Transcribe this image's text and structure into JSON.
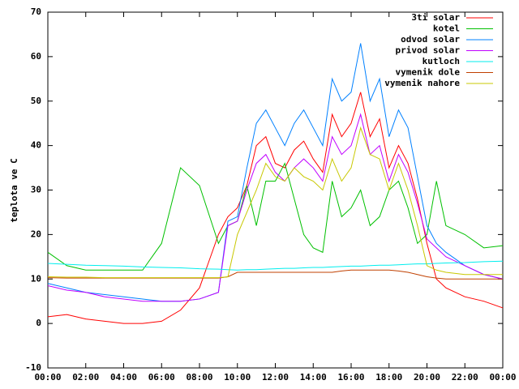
{
  "chart_data": {
    "type": "line",
    "ylabel": "teplota ve C",
    "x": [
      0,
      1,
      2,
      3,
      4,
      5,
      6,
      7,
      8,
      9,
      9.5,
      10,
      10.5,
      11,
      11.5,
      12,
      12.5,
      13,
      13.5,
      14,
      14.5,
      15,
      15.5,
      16,
      16.5,
      17,
      17.5,
      18,
      18.5,
      19,
      19.5,
      20,
      20.5,
      21,
      22,
      23,
      24
    ],
    "xlim": [
      0,
      24
    ],
    "xticks": [
      {
        "value": 0,
        "label": "00:00"
      },
      {
        "value": 2,
        "label": "02:00"
      },
      {
        "value": 4,
        "label": "04:00"
      },
      {
        "value": 6,
        "label": "06:00"
      },
      {
        "value": 8,
        "label": "08:00"
      },
      {
        "value": 10,
        "label": "10:00"
      },
      {
        "value": 12,
        "label": "12:00"
      },
      {
        "value": 14,
        "label": "14:00"
      },
      {
        "value": 16,
        "label": "16:00"
      },
      {
        "value": 18,
        "label": "18:00"
      },
      {
        "value": 20,
        "label": "20:00"
      },
      {
        "value": 22,
        "label": "22:00"
      },
      {
        "value": 24,
        "label": "00:00"
      }
    ],
    "ylim": [
      -10,
      70
    ],
    "yticks": [
      -10,
      0,
      10,
      20,
      30,
      40,
      50,
      60,
      70
    ],
    "legend": "top-right",
    "series": [
      {
        "name": "3ti solar",
        "color": "#ff0000",
        "values": [
          1.5,
          2,
          1,
          0.5,
          0,
          0,
          0.5,
          3,
          8,
          20,
          24,
          26,
          31,
          40,
          42,
          36,
          35,
          39,
          41,
          37,
          34,
          47,
          42,
          45,
          52,
          42,
          46,
          35,
          40,
          36,
          28,
          18,
          10,
          8,
          6,
          5,
          3.5
        ]
      },
      {
        "name": "kotel",
        "color": "#00c000",
        "values": [
          16,
          13,
          12,
          12,
          12,
          12,
          18,
          35,
          31,
          18,
          22,
          23,
          31,
          22,
          32,
          32,
          36,
          28,
          20,
          17,
          16,
          32,
          24,
          26,
          30,
          22,
          24,
          30,
          32,
          26,
          18,
          20,
          32,
          22,
          20,
          17,
          17.5
        ]
      },
      {
        "name": "odvod solar",
        "color": "#0080ff",
        "values": [
          9,
          8,
          7,
          6.5,
          6,
          5.5,
          5,
          5,
          5.5,
          7,
          23,
          24,
          35,
          45,
          48,
          44,
          40,
          45,
          48,
          44,
          40,
          55,
          50,
          52,
          63,
          50,
          55,
          42,
          48,
          44,
          33,
          22,
          18,
          16,
          13,
          11,
          10
        ]
      },
      {
        "name": "privod solar",
        "color": "#c000ff",
        "values": [
          8.5,
          7.5,
          7,
          6,
          5.5,
          5,
          5,
          5,
          5.5,
          7,
          22,
          23,
          30,
          36,
          38,
          34,
          32,
          35,
          37,
          35,
          32,
          42,
          38,
          40,
          47,
          38,
          40,
          32,
          38,
          34,
          27,
          19,
          17,
          15,
          13,
          11,
          10
        ]
      },
      {
        "name": "kutloch",
        "color": "#00eeee",
        "values": [
          13.5,
          13.3,
          13.1,
          13,
          12.9,
          12.7,
          12.6,
          12.5,
          12.3,
          12.2,
          12.1,
          12,
          12.1,
          12.1,
          12.2,
          12.3,
          12.4,
          12.4,
          12.5,
          12.6,
          12.6,
          12.7,
          12.8,
          12.9,
          12.9,
          13,
          13.1,
          13.1,
          13.2,
          13.3,
          13.4,
          13.4,
          13.5,
          13.6,
          13.7,
          13.9,
          14
        ]
      },
      {
        "name": "vymenik dole",
        "color": "#c04000",
        "values": [
          10.3,
          10.2,
          10.2,
          10.2,
          10.2,
          10.2,
          10.2,
          10.2,
          10.2,
          10.2,
          10.5,
          11.5,
          11.5,
          11.5,
          11.5,
          11.5,
          11.5,
          11.5,
          11.5,
          11.5,
          11.5,
          11.5,
          11.8,
          12,
          12,
          12,
          12,
          12,
          11.8,
          11.5,
          11,
          10.5,
          10.2,
          10,
          10,
          10,
          10
        ]
      },
      {
        "name": "vymenik nahore",
        "color": "#c8c800",
        "values": [
          10.5,
          10.4,
          10.4,
          10.3,
          10.3,
          10.3,
          10.3,
          10.3,
          10.3,
          10.3,
          10.5,
          20,
          25,
          30,
          36,
          33,
          32,
          35,
          33,
          32,
          30,
          37,
          32,
          35,
          44,
          38,
          37,
          30,
          36,
          30,
          22,
          13,
          12,
          11.5,
          11,
          11,
          11
        ]
      }
    ]
  }
}
